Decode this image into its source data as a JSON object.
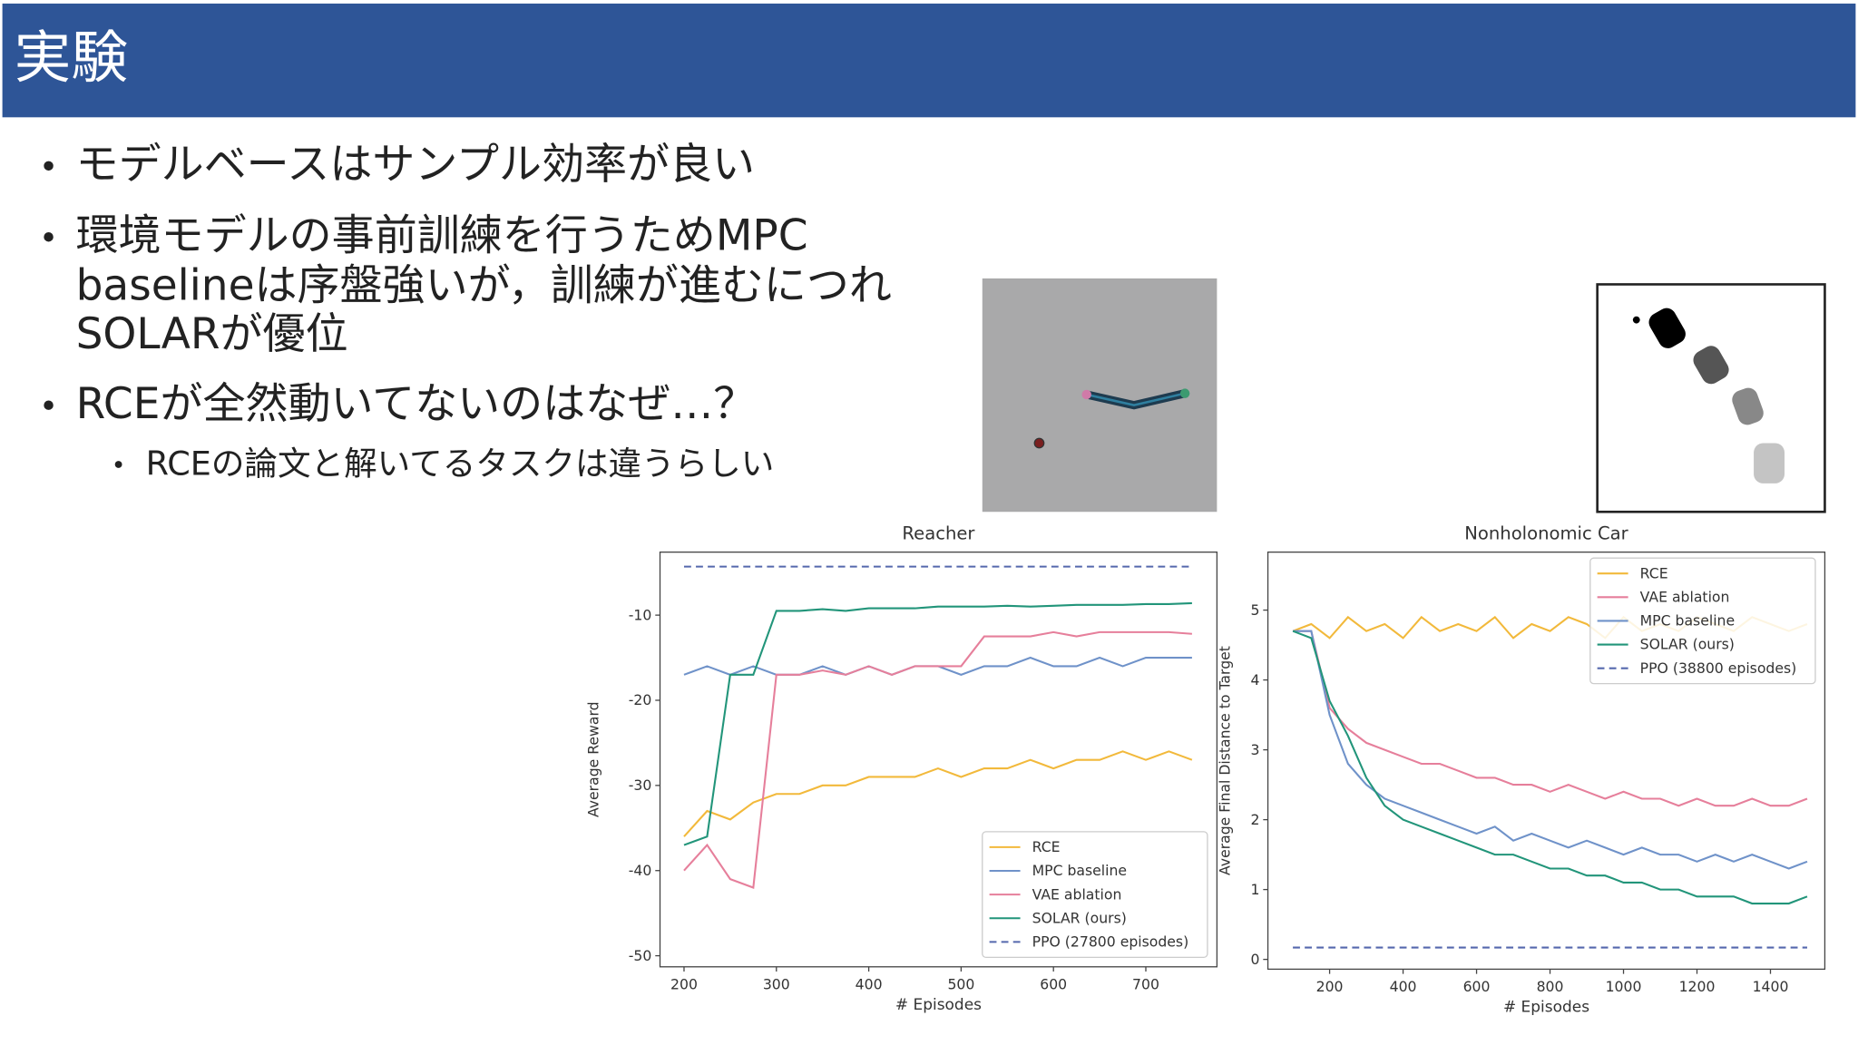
{
  "slide": {
    "title": "実験",
    "bullets": [
      {
        "lines": [
          "モデルベースはサンプル効率が良い"
        ]
      },
      {
        "lines": [
          "環境モデルの事前訓練を行うためMPC",
          "baselineは序盤強いが，訓練が進むにつれ",
          "SOLARが優位"
        ]
      },
      {
        "lines": [
          "RCEが全然動いてないのはなぜ…？"
        ],
        "sub": [
          "RCEの論文と解いてるタスクは違うらしい"
        ]
      }
    ]
  },
  "chart_data": [
    {
      "type": "line",
      "title": "Reacher",
      "x_label": "# Episodes",
      "y_label": "Average Reward",
      "x": [
        200,
        225,
        250,
        275,
        300,
        325,
        350,
        375,
        400,
        425,
        450,
        475,
        500,
        525,
        550,
        575,
        600,
        625,
        650,
        675,
        700,
        725,
        750
      ],
      "xlim": [
        174,
        777
      ],
      "xticks": [
        200,
        300,
        400,
        500,
        600,
        700
      ],
      "ylim": [
        -51.3,
        -2.6
      ],
      "yticks": [
        -50,
        -40,
        -30,
        -20,
        -10
      ],
      "legend": "lower right",
      "grid": false,
      "series": [
        {
          "name": "RCE",
          "color": "#f2b93b",
          "values": [
            -36,
            -33,
            -34,
            -32,
            -31,
            -31,
            -30,
            -30,
            -29,
            -29,
            -29,
            -28,
            -29,
            -28,
            -28,
            -27,
            -28,
            -27,
            -27,
            -26,
            -27,
            -26,
            -27
          ]
        },
        {
          "name": "MPC baseline",
          "color": "#6f92c9",
          "values": [
            -17,
            -16,
            -17,
            -16,
            -17,
            -17,
            -16,
            -17,
            -16,
            -17,
            -16,
            -16,
            -17,
            -16,
            -16,
            -15,
            -16,
            -16,
            -15,
            -16,
            -15,
            -15,
            -15
          ]
        },
        {
          "name": "VAE ablation",
          "color": "#e67f9b",
          "values": [
            -40,
            -37,
            -41,
            -42,
            -17,
            -17,
            -16.5,
            -17,
            -16,
            -17,
            -16,
            -16,
            -16,
            -12.5,
            -12.5,
            -12.5,
            -12,
            -12.5,
            -12,
            -12,
            -12,
            -12,
            -12.2
          ]
        },
        {
          "name": "SOLAR (ours)",
          "color": "#22957a",
          "values": [
            -37,
            -36,
            -17,
            -17,
            -9.5,
            -9.5,
            -9.3,
            -9.5,
            -9.2,
            -9.2,
            -9.2,
            -9,
            -9,
            -9,
            -8.9,
            -9,
            -8.9,
            -8.8,
            -8.8,
            -8.8,
            -8.7,
            -8.7,
            -8.6
          ]
        },
        {
          "name": "PPO (27800 episodes)",
          "color": "#5568ad",
          "linestyle": "dashed",
          "values": [
            -4.3,
            -4.3,
            -4.3,
            -4.3,
            -4.3,
            -4.3,
            -4.3,
            -4.3,
            -4.3,
            -4.3,
            -4.3,
            -4.3,
            -4.3,
            -4.3,
            -4.3,
            -4.3,
            -4.3,
            -4.3,
            -4.3,
            -4.3,
            -4.3,
            -4.3,
            -4.3
          ]
        }
      ]
    },
    {
      "type": "line",
      "title": "Nonholonomic Car",
      "x_label": "# Episodes",
      "y_label": "Average Final Distance to Target",
      "x": [
        100,
        150,
        200,
        250,
        300,
        350,
        400,
        450,
        500,
        550,
        600,
        650,
        700,
        750,
        800,
        850,
        900,
        950,
        1000,
        1050,
        1100,
        1150,
        1200,
        1250,
        1300,
        1350,
        1400,
        1450,
        1500
      ],
      "xlim": [
        32,
        1548
      ],
      "xticks": [
        200,
        400,
        600,
        800,
        1000,
        1200,
        1400
      ],
      "ylim": [
        -0.14,
        5.83
      ],
      "yticks": [
        0,
        1,
        2,
        3,
        4,
        5
      ],
      "legend": "upper right",
      "grid": false,
      "series": [
        {
          "name": "RCE",
          "color": "#f2b93b",
          "values": [
            4.7,
            4.8,
            4.6,
            4.9,
            4.7,
            4.8,
            4.6,
            4.9,
            4.7,
            4.8,
            4.7,
            4.9,
            4.6,
            4.8,
            4.7,
            4.9,
            4.8,
            4.6,
            4.9,
            4.7,
            4.8,
            4.7,
            4.9,
            4.8,
            4.7,
            4.9,
            4.8,
            4.7,
            4.8
          ]
        },
        {
          "name": "VAE ablation",
          "color": "#e67f9b",
          "values": [
            4.7,
            4.7,
            3.6,
            3.3,
            3.1,
            3.0,
            2.9,
            2.8,
            2.8,
            2.7,
            2.6,
            2.6,
            2.5,
            2.5,
            2.4,
            2.5,
            2.4,
            2.3,
            2.4,
            2.3,
            2.3,
            2.2,
            2.3,
            2.2,
            2.2,
            2.3,
            2.2,
            2.2,
            2.3
          ]
        },
        {
          "name": "MPC baseline",
          "color": "#6f92c9",
          "values": [
            4.7,
            4.7,
            3.5,
            2.8,
            2.5,
            2.3,
            2.2,
            2.1,
            2.0,
            1.9,
            1.8,
            1.9,
            1.7,
            1.8,
            1.7,
            1.6,
            1.7,
            1.6,
            1.5,
            1.6,
            1.5,
            1.5,
            1.4,
            1.5,
            1.4,
            1.5,
            1.4,
            1.3,
            1.4
          ]
        },
        {
          "name": "SOLAR (ours)",
          "color": "#22957a",
          "values": [
            4.7,
            4.6,
            3.7,
            3.2,
            2.6,
            2.2,
            2.0,
            1.9,
            1.8,
            1.7,
            1.6,
            1.5,
            1.5,
            1.4,
            1.3,
            1.3,
            1.2,
            1.2,
            1.1,
            1.1,
            1.0,
            1.0,
            0.9,
            0.9,
            0.9,
            0.8,
            0.8,
            0.8,
            0.9
          ]
        },
        {
          "name": "PPO (38800 episodes)",
          "color": "#5568ad",
          "linestyle": "dashed",
          "values": [
            0.17,
            0.17,
            0.17,
            0.17,
            0.17,
            0.17,
            0.17,
            0.17,
            0.17,
            0.17,
            0.17,
            0.17,
            0.17,
            0.17,
            0.17,
            0.17,
            0.17,
            0.17,
            0.17,
            0.17,
            0.17,
            0.17,
            0.17,
            0.17,
            0.17,
            0.17,
            0.17,
            0.17,
            0.17
          ]
        }
      ]
    }
  ]
}
